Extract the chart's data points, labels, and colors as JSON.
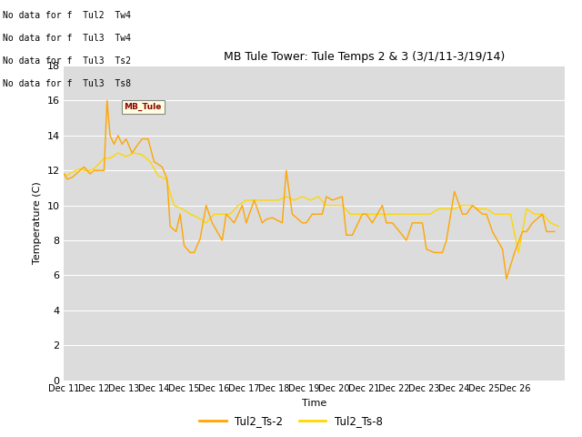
{
  "title": "MB Tule Tower: Tule Temps 2 & 3 (3/1/11-3/19/14)",
  "xlabel": "Time",
  "ylabel": "Temperature (C)",
  "color_ts2": "#FFA500",
  "color_ts8": "#FFD700",
  "ylim": [
    0,
    18
  ],
  "yticks": [
    0,
    2,
    4,
    6,
    8,
    10,
    12,
    14,
    16,
    18
  ],
  "bg_color": "#DCDCDC",
  "no_data_lines": [
    "No data for f  Tul2  Tw4",
    "No data for f  Tul3  Tw4",
    "No data for f  Tul3  Ts2",
    "No data for f  Tul3  Ts8"
  ],
  "ts2_x": [
    0,
    0.15,
    0.4,
    0.6,
    0.8,
    1.0,
    1.3,
    1.5,
    2.0,
    2.15,
    2.3,
    2.5,
    2.7,
    2.9,
    3.1,
    3.4,
    3.7,
    3.9,
    4.2,
    4.5,
    4.9,
    5.15,
    5.3,
    5.6,
    5.8,
    6.0,
    6.3,
    6.5,
    6.8,
    7.1,
    7.4,
    7.9,
    8.1,
    8.5,
    8.9,
    9.1,
    9.5,
    9.9,
    10.1,
    10.4,
    10.9,
    11.1,
    11.4,
    11.9,
    12.1,
    12.4,
    12.9,
    13.1,
    13.4,
    13.9,
    14.1,
    14.4,
    14.9,
    15.1,
    15.4,
    15.9,
    16.1,
    16.4,
    16.9,
    17.1,
    17.4,
    17.9,
    18.1,
    18.5,
    18.9,
    19.1,
    19.5,
    19.9,
    20.1,
    20.4,
    20.9,
    21.1,
    21.4,
    21.9,
    22.1,
    22.5,
    22.9,
    23.1,
    23.4,
    23.9,
    24.1,
    24.5
  ],
  "ts2_y": [
    11.8,
    11.5,
    11.6,
    11.8,
    12.0,
    12.2,
    11.8,
    12.0,
    12.0,
    16.0,
    14.0,
    13.5,
    14.0,
    13.5,
    13.8,
    13.0,
    13.5,
    13.8,
    13.8,
    12.5,
    12.2,
    11.5,
    8.8,
    8.5,
    9.5,
    7.7,
    7.3,
    7.3,
    8.1,
    10.0,
    9.0,
    8.0,
    9.5,
    9.0,
    10.0,
    9.0,
    10.3,
    9.0,
    9.2,
    9.3,
    9.0,
    12.0,
    9.5,
    9.0,
    9.0,
    9.5,
    9.5,
    10.5,
    10.3,
    10.5,
    8.3,
    8.3,
    9.5,
    9.5,
    9.0,
    10.0,
    9.0,
    9.0,
    8.3,
    8.0,
    9.0,
    9.0,
    7.5,
    7.3,
    7.3,
    8.0,
    10.8,
    9.5,
    9.5,
    10.0,
    9.5,
    9.5,
    8.5,
    7.5,
    5.8,
    7.3,
    8.5,
    8.5,
    9.0,
    9.5,
    8.5,
    8.5
  ],
  "ts8_x": [
    0,
    0.15,
    0.4,
    0.6,
    0.8,
    1.0,
    1.3,
    1.5,
    2.0,
    2.3,
    2.7,
    3.1,
    3.5,
    3.9,
    4.3,
    4.7,
    5.1,
    5.5,
    5.9,
    6.3,
    6.7,
    7.1,
    7.5,
    7.9,
    8.3,
    8.7,
    9.1,
    9.5,
    9.9,
    10.3,
    10.7,
    11.1,
    11.5,
    11.9,
    12.3,
    12.7,
    13.1,
    13.5,
    13.9,
    14.3,
    14.7,
    15.1,
    15.5,
    15.9,
    16.3,
    16.7,
    17.1,
    17.5,
    17.9,
    18.3,
    18.7,
    19.1,
    19.5,
    19.9,
    20.3,
    20.7,
    21.1,
    21.5,
    21.9,
    22.3,
    22.7,
    23.1,
    23.5,
    23.9,
    24.3,
    24.7
  ],
  "ts8_y": [
    11.8,
    11.7,
    11.9,
    12.0,
    12.1,
    12.0,
    12.0,
    12.1,
    12.7,
    12.7,
    13.0,
    12.8,
    13.0,
    12.9,
    12.5,
    11.7,
    11.5,
    10.0,
    9.8,
    9.5,
    9.3,
    9.0,
    9.5,
    9.5,
    9.5,
    10.0,
    10.3,
    10.3,
    10.3,
    10.3,
    10.3,
    10.5,
    10.3,
    10.5,
    10.3,
    10.5,
    10.0,
    10.0,
    10.0,
    9.5,
    9.5,
    9.5,
    9.5,
    9.5,
    9.5,
    9.5,
    9.5,
    9.5,
    9.5,
    9.5,
    9.8,
    9.8,
    9.8,
    10.0,
    10.0,
    9.8,
    9.8,
    9.5,
    9.5,
    9.5,
    7.3,
    9.8,
    9.5,
    9.5,
    9.0,
    8.8
  ],
  "xtick_positions": [
    0,
    1.5,
    3,
    4.5,
    6,
    7.5,
    9,
    10.5,
    12,
    13.5,
    15,
    16.5,
    18,
    19.5,
    21,
    22.5,
    24
  ],
  "xtick_labels": [
    "Dec 11",
    "Dec 12",
    "Dec 13",
    "Dec 14",
    "Dec 15",
    "Dec 16",
    "Dec 17",
    "Dec 18",
    "Dec 19",
    "Dec 20",
    "Dec 21",
    "Dec 22",
    "Dec 23",
    "Dec 24",
    "Dec 25",
    "Dec 26",
    ""
  ],
  "xlim": [
    0,
    25
  ]
}
